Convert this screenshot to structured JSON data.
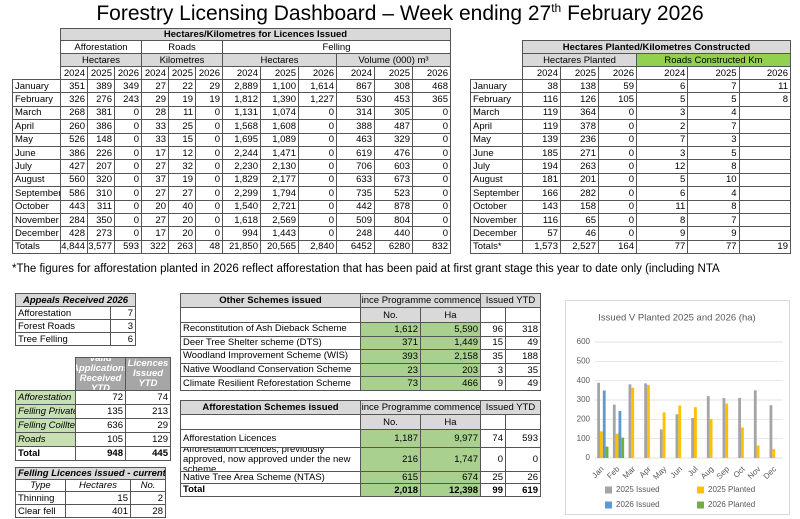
{
  "header": {
    "title": "Forestry Licensing Dashboard – Week ending 27",
    "title_sup": "th",
    "title_end": " February 2026"
  },
  "licences_issued": {
    "title": "Hectares/Kilometres for Licences Issued",
    "groups": [
      "Afforestation",
      "Roads",
      "Felling"
    ],
    "units": [
      "Hectares",
      "Kilometres",
      "Hectares",
      "Volume (000) m³"
    ],
    "years": [
      "2024",
      "2025",
      "2026"
    ],
    "rows": [
      [
        "January",
        "351",
        "389",
        "349",
        "27",
        "22",
        "29",
        "2,889",
        "1,100",
        "1,614",
        "867",
        "308",
        "468"
      ],
      [
        "February",
        "326",
        "276",
        "243",
        "29",
        "19",
        "19",
        "1,812",
        "1,390",
        "1,227",
        "530",
        "453",
        "365"
      ],
      [
        "March",
        "268",
        "381",
        "0",
        "28",
        "11",
        "0",
        "1,131",
        "1,074",
        "0",
        "314",
        "305",
        "0"
      ],
      [
        "April",
        "260",
        "386",
        "0",
        "33",
        "25",
        "0",
        "1,568",
        "1,608",
        "0",
        "388",
        "487",
        "0"
      ],
      [
        "May",
        "526",
        "148",
        "0",
        "33",
        "15",
        "0",
        "1,695",
        "1,089",
        "0",
        "463",
        "329",
        "0"
      ],
      [
        "June",
        "386",
        "226",
        "0",
        "17",
        "12",
        "0",
        "2,244",
        "1,471",
        "0",
        "619",
        "476",
        "0"
      ],
      [
        "July",
        "427",
        "207",
        "0",
        "27",
        "32",
        "0",
        "2,230",
        "2,130",
        "0",
        "706",
        "603",
        "0"
      ],
      [
        "August",
        "560",
        "320",
        "0",
        "37",
        "19",
        "0",
        "1,829",
        "2,177",
        "0",
        "633",
        "673",
        "0"
      ],
      [
        "September",
        "586",
        "310",
        "0",
        "27",
        "27",
        "0",
        "2,299",
        "1,794",
        "0",
        "735",
        "523",
        "0"
      ],
      [
        "October",
        "443",
        "311",
        "0",
        "20",
        "40",
        "0",
        "1,540",
        "2,721",
        "0",
        "442",
        "878",
        "0"
      ],
      [
        "November",
        "284",
        "350",
        "0",
        "27",
        "20",
        "0",
        "1,618",
        "2,569",
        "0",
        "509",
        "804",
        "0"
      ],
      [
        "December",
        "428",
        "273",
        "0",
        "17",
        "20",
        "0",
        "994",
        "1,443",
        "0",
        "248",
        "440",
        "0"
      ]
    ],
    "totals": [
      "Totals",
      "4,844",
      "3,577",
      "593",
      "322",
      "263",
      "48",
      "21,850",
      "20,565",
      "2,840",
      "6452",
      "6280",
      "832"
    ]
  },
  "planted": {
    "title": "Hectares Planted/Kilometres Constructed",
    "units": [
      "Hectares Planted",
      "Roads Constructed Km"
    ],
    "years": [
      "2024",
      "2025",
      "2026"
    ],
    "rows": [
      [
        "January",
        "38",
        "138",
        "59",
        "6",
        "7",
        "11"
      ],
      [
        "February",
        "116",
        "126",
        "105",
        "5",
        "5",
        "8"
      ],
      [
        "March",
        "119",
        "364",
        "0",
        "3",
        "4",
        null
      ],
      [
        "April",
        "119",
        "378",
        "0",
        "2",
        "7",
        null
      ],
      [
        "May",
        "139",
        "236",
        "0",
        "7",
        "3",
        null
      ],
      [
        "June",
        "185",
        "271",
        "0",
        "3",
        "5",
        null
      ],
      [
        "July",
        "194",
        "263",
        "0",
        "12",
        "8",
        null
      ],
      [
        "August",
        "181",
        "201",
        "0",
        "5",
        "10",
        null
      ],
      [
        "September",
        "166",
        "282",
        "0",
        "6",
        "4",
        null
      ],
      [
        "October",
        "143",
        "158",
        "0",
        "11",
        "8",
        null
      ],
      [
        "November",
        "116",
        "65",
        "0",
        "8",
        "7",
        null
      ],
      [
        "December",
        "57",
        "46",
        "0",
        "9",
        "9",
        null
      ]
    ],
    "totals": [
      "Totals*",
      "1,573",
      "2,527",
      "164",
      "77",
      "77",
      "19"
    ]
  },
  "footnote": "*The figures for afforestation planted in 2026 reflect afforestation that has been paid at first grant stage this year to date only (including NTA",
  "appeals": {
    "title": "Appeals Received 2026",
    "rows": [
      [
        "Afforestation",
        "7"
      ],
      [
        "Forest Roads",
        "3"
      ],
      [
        "Tree Felling",
        "6"
      ]
    ]
  },
  "applications": {
    "headers": [
      "Valid Applications Received YTD",
      "Licences Issued YTD"
    ],
    "rows": [
      [
        "Afforestation",
        "72",
        "74"
      ],
      [
        "Felling Private",
        "135",
        "213"
      ],
      [
        "Felling Coillte",
        "636",
        "29"
      ],
      [
        "Roads",
        "105",
        "129"
      ],
      [
        "Total",
        "948",
        "445"
      ]
    ]
  },
  "felling_week": {
    "title": "Felling Licences issued - current week",
    "headers": [
      "Type",
      "Hectares",
      "No."
    ],
    "rows": [
      [
        "Thinning",
        "15",
        "2"
      ],
      [
        "Clear fell",
        "401",
        "28"
      ]
    ]
  },
  "other_schemes": {
    "title": "Other Schemes issued",
    "groups": [
      "Since Programme commenced",
      "Issued YTD"
    ],
    "subheaders": [
      "No.",
      "Ha"
    ],
    "rows": [
      [
        "Reconstitution of Ash Dieback Scheme",
        "1,612",
        "5,590",
        "96",
        "318"
      ],
      [
        "Deer Tree Shelter scheme (DTS)",
        "371",
        "1,449",
        "15",
        "49"
      ],
      [
        "Woodland Improvement Scheme (WIS)",
        "393",
        "2,158",
        "35",
        "188"
      ],
      [
        "Native Woodland Conservation Scheme",
        "23",
        "203",
        "3",
        "35"
      ],
      [
        "Climate Resilient Reforestation Scheme",
        "73",
        "466",
        "9",
        "49"
      ]
    ]
  },
  "afforestation_schemes": {
    "title": "Afforestation Schemes issued",
    "groups": [
      "Since Programme commenced",
      "Issued YTD"
    ],
    "subheaders": [
      "No.",
      "Ha"
    ],
    "rows": [
      [
        "Afforestation Licences",
        "1,187",
        "9,977",
        "74",
        "593"
      ],
      [
        "Afforestation Licences, previously approved, now approved under the new scheme.",
        "216",
        "1,747",
        "0",
        "0"
      ],
      [
        "Native Tree Area Scheme (NTAS)",
        "615",
        "674",
        "25",
        "26"
      ],
      [
        "Total",
        "2,018",
        "12,398",
        "99",
        "619"
      ]
    ]
  },
  "chart_data": {
    "type": "bar",
    "title": "Issued V Planted 2025 and 2026 (ha)",
    "categories": [
      "Jan",
      "Feb",
      "Mar",
      "Apr",
      "May",
      "Jun",
      "Jul",
      "Aug",
      "Sep",
      "Oct",
      "Nov",
      "Dec"
    ],
    "series": [
      {
        "name": "2025 Issued",
        "color": "#a5a5a5",
        "values": [
          389,
          276,
          381,
          386,
          148,
          226,
          207,
          320,
          310,
          311,
          350,
          273
        ]
      },
      {
        "name": "2025 Planted",
        "color": "#ffc000",
        "values": [
          138,
          126,
          364,
          378,
          236,
          271,
          263,
          201,
          282,
          158,
          65,
          46
        ]
      },
      {
        "name": "2026 Issued",
        "color": "#5b9bd5",
        "values": [
          349,
          243,
          0,
          0,
          0,
          0,
          0,
          0,
          0,
          0,
          0,
          0
        ]
      },
      {
        "name": "2026 Planted",
        "color": "#70ad47",
        "values": [
          59,
          105,
          0,
          0,
          0,
          0,
          0,
          0,
          0,
          0,
          0,
          0
        ]
      }
    ],
    "ylim": [
      0,
      600
    ],
    "yticks": [
      0,
      100,
      200,
      300,
      400,
      500,
      600
    ],
    "grid": true
  }
}
